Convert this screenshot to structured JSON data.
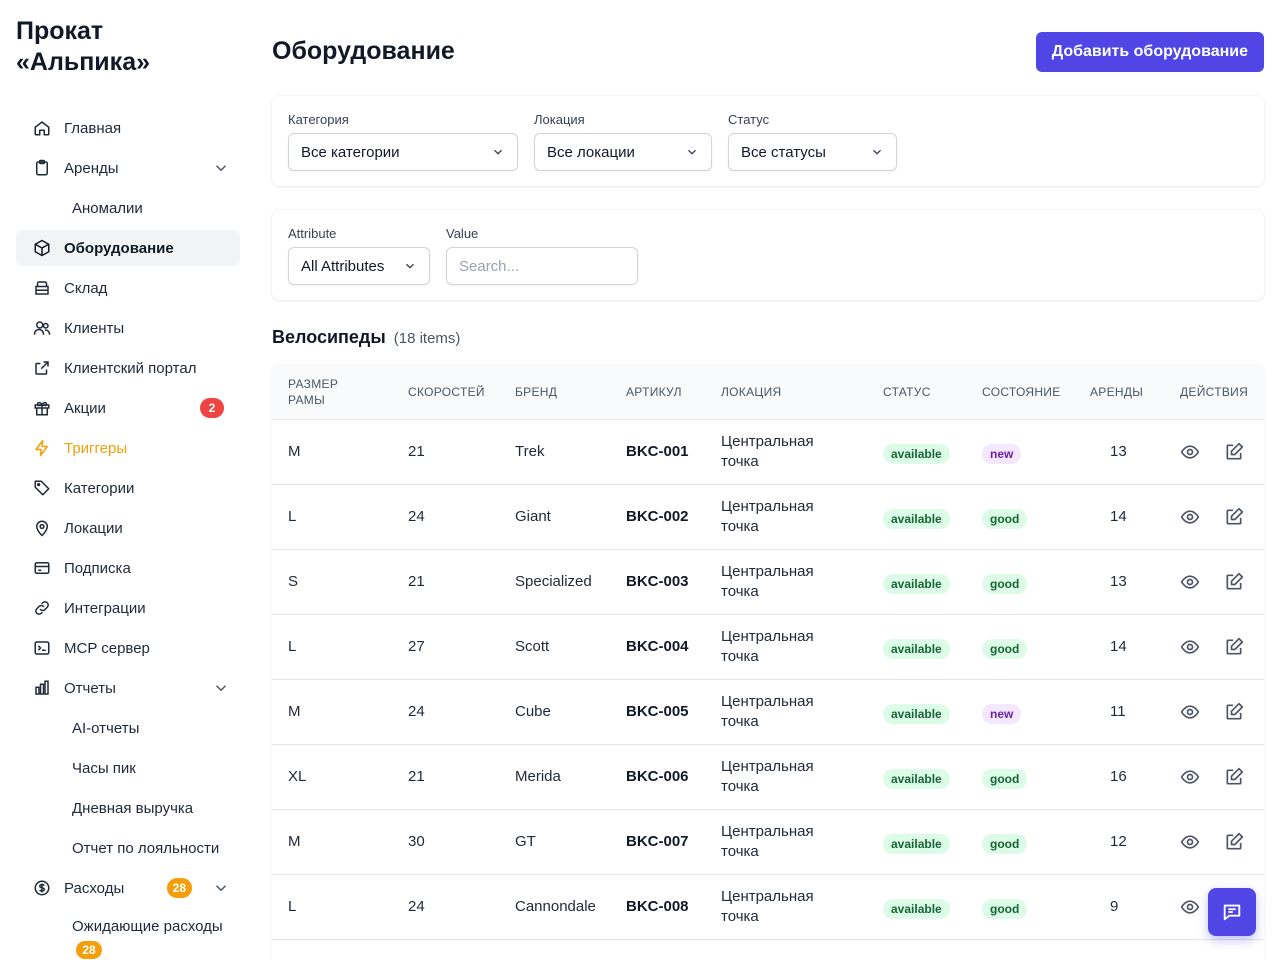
{
  "app": {
    "brand": "Прокат «Альпика»"
  },
  "colors": {
    "accent": "#4f46e5",
    "trigger": "#f59e0b",
    "badge_red": "#ef4444",
    "badge_orange": "#f59e0b"
  },
  "sidebar": {
    "items": [
      {
        "label": "Главная",
        "icon": "home-icon"
      },
      {
        "label": "Аренды",
        "icon": "clipboard-icon"
      },
      {
        "label": "Аномалии"
      },
      {
        "label": "Оборудование",
        "icon": "box-icon"
      },
      {
        "label": "Склад",
        "icon": "warehouse-icon"
      },
      {
        "label": "Клиенты",
        "icon": "users-icon"
      },
      {
        "label": "Клиентский портал",
        "icon": "external-link-icon"
      },
      {
        "label": "Акции",
        "icon": "gift-icon",
        "badge": "2"
      },
      {
        "label": "Триггеры",
        "icon": "bolt-icon"
      },
      {
        "label": "Категории",
        "icon": "tag-icon"
      },
      {
        "label": "Локации",
        "icon": "map-pin-icon"
      },
      {
        "label": "Подписка",
        "icon": "credit-card-icon"
      },
      {
        "label": "Интеграции",
        "icon": "link-icon"
      },
      {
        "label": "MCP сервер",
        "icon": "terminal-icon"
      },
      {
        "label": "Отчеты",
        "icon": "bar-chart-icon"
      },
      {
        "label": "AI-отчеты"
      },
      {
        "label": "Часы пик"
      },
      {
        "label": "Дневная выручка"
      },
      {
        "label": "Отчет по лояльности"
      },
      {
        "label": "Расходы",
        "icon": "dollar-icon",
        "badge": "28"
      },
      {
        "label": "Ожидающие расходы",
        "badge": "28"
      }
    ]
  },
  "header": {
    "title": "Оборудование",
    "add_button": "Добавить оборудование"
  },
  "filters": {
    "category": {
      "label": "Категория",
      "value": "Все категории"
    },
    "location": {
      "label": "Локация",
      "value": "Все локации"
    },
    "status": {
      "label": "Статус",
      "value": "Все статусы"
    },
    "attribute": {
      "label": "Attribute",
      "value": "All Attributes"
    },
    "value": {
      "label": "Value",
      "placeholder": "Search..."
    }
  },
  "section": {
    "title": "Велосипеды",
    "count": "(18 items)"
  },
  "table": {
    "columns": [
      "РАЗМЕР РАМЫ",
      "СКОРОСТЕЙ",
      "БРЕНД",
      "АРТИКУЛ",
      "ЛОКАЦИЯ",
      "СТАТУС",
      "СОСТОЯНИЕ",
      "АРЕНДЫ",
      "ДЕЙСТВИЯ"
    ],
    "rows": [
      {
        "size": "M",
        "speeds": "21",
        "brand": "Trek",
        "sku": "BKC-001",
        "location": "Центральная точка",
        "status": "available",
        "condition": "new",
        "rentals": "13"
      },
      {
        "size": "L",
        "speeds": "24",
        "brand": "Giant",
        "sku": "BKC-002",
        "location": "Центральная точка",
        "status": "available",
        "condition": "good",
        "rentals": "14"
      },
      {
        "size": "S",
        "speeds": "21",
        "brand": "Specialized",
        "sku": "BKC-003",
        "location": "Центральная точка",
        "status": "available",
        "condition": "good",
        "rentals": "13"
      },
      {
        "size": "L",
        "speeds": "27",
        "brand": "Scott",
        "sku": "BKC-004",
        "location": "Центральная точка",
        "status": "available",
        "condition": "good",
        "rentals": "14"
      },
      {
        "size": "M",
        "speeds": "24",
        "brand": "Cube",
        "sku": "BKC-005",
        "location": "Центральная точка",
        "status": "available",
        "condition": "new",
        "rentals": "11"
      },
      {
        "size": "XL",
        "speeds": "21",
        "brand": "Merida",
        "sku": "BKC-006",
        "location": "Центральная точка",
        "status": "available",
        "condition": "good",
        "rentals": "16"
      },
      {
        "size": "M",
        "speeds": "30",
        "brand": "GT",
        "sku": "BKC-007",
        "location": "Центральная точка",
        "status": "available",
        "condition": "good",
        "rentals": "12"
      },
      {
        "size": "L",
        "speeds": "24",
        "brand": "Cannondale",
        "sku": "BKC-008",
        "location": "Центральная точка",
        "status": "available",
        "condition": "good",
        "rentals": "9"
      }
    ]
  }
}
